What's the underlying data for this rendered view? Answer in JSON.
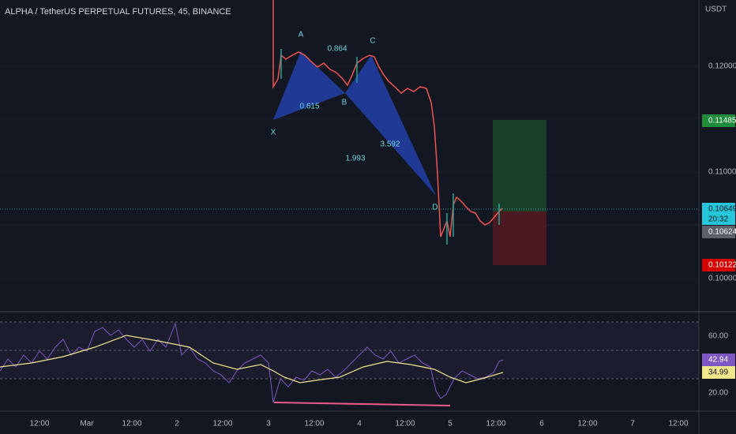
{
  "header": {
    "title": "ALPHA / TetherUS PERPETUAL FUTURES, 45, BINANCE",
    "currency": "USDT"
  },
  "price_axis": {
    "ticks": [
      "0.12000",
      "0.11000",
      "0.10000"
    ],
    "labels": {
      "target": "0.11485",
      "last": "0.10649",
      "countdown": "20:32",
      "entry": "0.10624",
      "stop": "0.10122"
    }
  },
  "pattern": {
    "points": [
      "X",
      "A",
      "B",
      "C",
      "D"
    ],
    "ratios": [
      "0.864",
      "0.615",
      "3.592",
      "1.993"
    ]
  },
  "rsi_axis": {
    "ticks": [
      "60.00",
      "20.00"
    ],
    "labels": {
      "rsi": "42.94",
      "ma": "34.99"
    }
  },
  "time_axis": {
    "ticks": [
      "12:00",
      "Mar",
      "12:00",
      "2",
      "12:00",
      "3",
      "12:00",
      "4",
      "12:00",
      "5",
      "12:00",
      "6",
      "12:00",
      "7",
      "12:00"
    ]
  }
}
